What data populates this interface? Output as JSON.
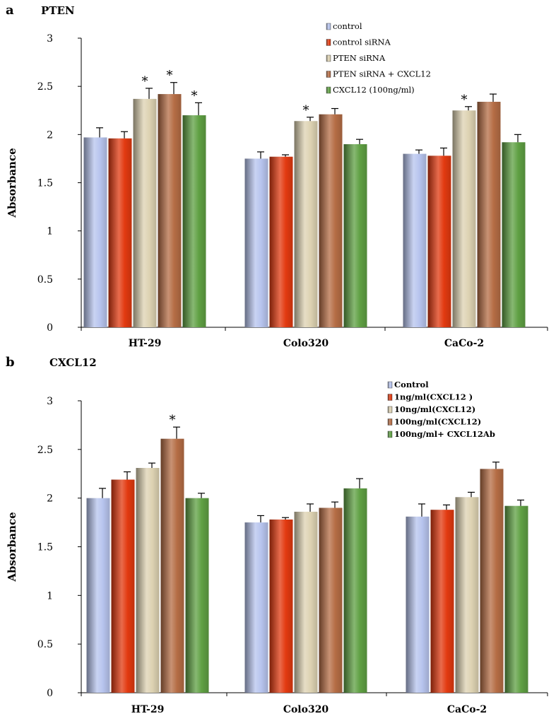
{
  "chart_data": [
    {
      "type": "bar",
      "panel_letter": "a",
      "title": "PTEN",
      "xlabel": "",
      "ylabel": "Absorbance",
      "ylim": [
        0,
        3
      ],
      "yticks": [
        "0",
        "0.5",
        "1",
        "1.5",
        "2",
        "2.5",
        "3"
      ],
      "categories": [
        "HT-29",
        "Colo320",
        "CaCo-2"
      ],
      "legend_position": "top-right",
      "series": [
        {
          "name": "control",
          "color": "#b7c4ee",
          "values": [
            1.97,
            1.75,
            1.8
          ],
          "errors": [
            0.1,
            0.07,
            0.04
          ],
          "stars": [
            "",
            "",
            ""
          ]
        },
        {
          "name": "control siRNA",
          "color": "#e23a10",
          "values": [
            1.96,
            1.77,
            1.78
          ],
          "errors": [
            0.07,
            0.02,
            0.08
          ],
          "stars": [
            "",
            "",
            ""
          ]
        },
        {
          "name": "PTEN siRNA",
          "color": "#ddd2b2",
          "values": [
            2.37,
            2.14,
            2.25
          ],
          "errors": [
            0.11,
            0.04,
            0.04
          ],
          "stars": [
            "*",
            "*",
            "*"
          ]
        },
        {
          "name": "PTEN siRNA + CXCL12",
          "color": "#b56d45",
          "values": [
            2.42,
            2.21,
            2.34
          ],
          "errors": [
            0.12,
            0.06,
            0.08
          ],
          "stars": [
            "*",
            "",
            ""
          ]
        },
        {
          "name": "CXCL12 (100ng/ml)",
          "color": "#5fa043",
          "values": [
            2.2,
            1.9,
            1.92
          ],
          "errors": [
            0.13,
            0.05,
            0.08
          ],
          "stars": [
            "*",
            "",
            ""
          ]
        }
      ]
    },
    {
      "type": "bar",
      "panel_letter": "b",
      "title": "CXCL12",
      "xlabel": "",
      "ylabel": "Absorbance",
      "ylim": [
        0,
        3
      ],
      "yticks": [
        "0",
        "0.5",
        "1",
        "1.5",
        "2",
        "2.5",
        "3"
      ],
      "categories": [
        "HT-29",
        "Colo320",
        "CaCo-2"
      ],
      "legend_position": "top-right",
      "series": [
        {
          "name": "Control",
          "color": "#b7c4ee",
          "values": [
            2.0,
            1.75,
            1.81
          ],
          "errors": [
            0.1,
            0.07,
            0.13
          ],
          "stars": [
            "",
            "",
            ""
          ]
        },
        {
          "name": "1ng/ml(CXCL12 )",
          "color": "#e23a10",
          "values": [
            2.19,
            1.78,
            1.88
          ],
          "errors": [
            0.08,
            0.02,
            0.05
          ],
          "stars": [
            "",
            "",
            ""
          ]
        },
        {
          "name": "10ng/ml(CXCL12)",
          "color": "#ddd2b2",
          "values": [
            2.31,
            1.86,
            2.01
          ],
          "errors": [
            0.05,
            0.08,
            0.05
          ],
          "stars": [
            "",
            "",
            ""
          ]
        },
        {
          "name": "100ng/ml(CXCL12)",
          "color": "#b56d45",
          "values": [
            2.61,
            1.9,
            2.3
          ],
          "errors": [
            0.12,
            0.06,
            0.07
          ],
          "stars": [
            "*",
            "",
            ""
          ]
        },
        {
          "name": "100ng/ml+ CXCL12Ab",
          "color": "#5fa043",
          "values": [
            2.0,
            2.1,
            1.92
          ],
          "errors": [
            0.05,
            0.1,
            0.06
          ],
          "stars": [
            "",
            "",
            ""
          ]
        }
      ]
    }
  ]
}
